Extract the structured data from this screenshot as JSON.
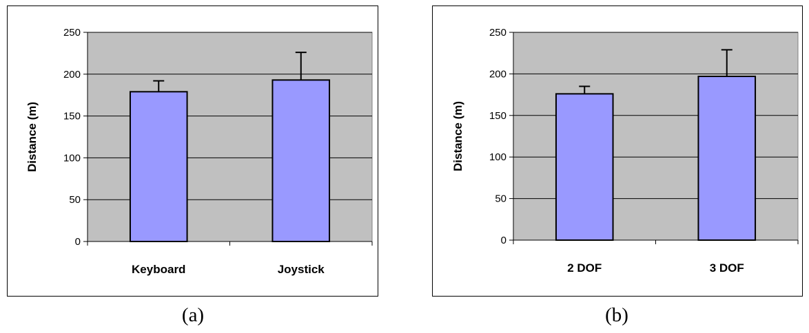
{
  "chart_data": [
    {
      "type": "bar",
      "panel_label": "(a)",
      "categories": [
        "Keyboard",
        "Joystick"
      ],
      "values": [
        179,
        193
      ],
      "error_bars": [
        13,
        33
      ],
      "xlabel": "",
      "ylabel": "Distance (m)",
      "ylim": [
        0,
        250
      ],
      "yticks": [
        0,
        50,
        100,
        150,
        200,
        250
      ],
      "grid": true,
      "bar_color": "#9999FF",
      "plot_background": "#C0C0C0"
    },
    {
      "type": "bar",
      "panel_label": "(b)",
      "categories": [
        "2 DOF",
        "3 DOF"
      ],
      "values": [
        176,
        197
      ],
      "error_bars": [
        9,
        32
      ],
      "xlabel": "",
      "ylabel": "Distance (m)",
      "ylim": [
        0,
        250
      ],
      "yticks": [
        0,
        50,
        100,
        150,
        200,
        250
      ],
      "grid": true,
      "bar_color": "#9999FF",
      "plot_background": "#C0C0C0"
    }
  ]
}
